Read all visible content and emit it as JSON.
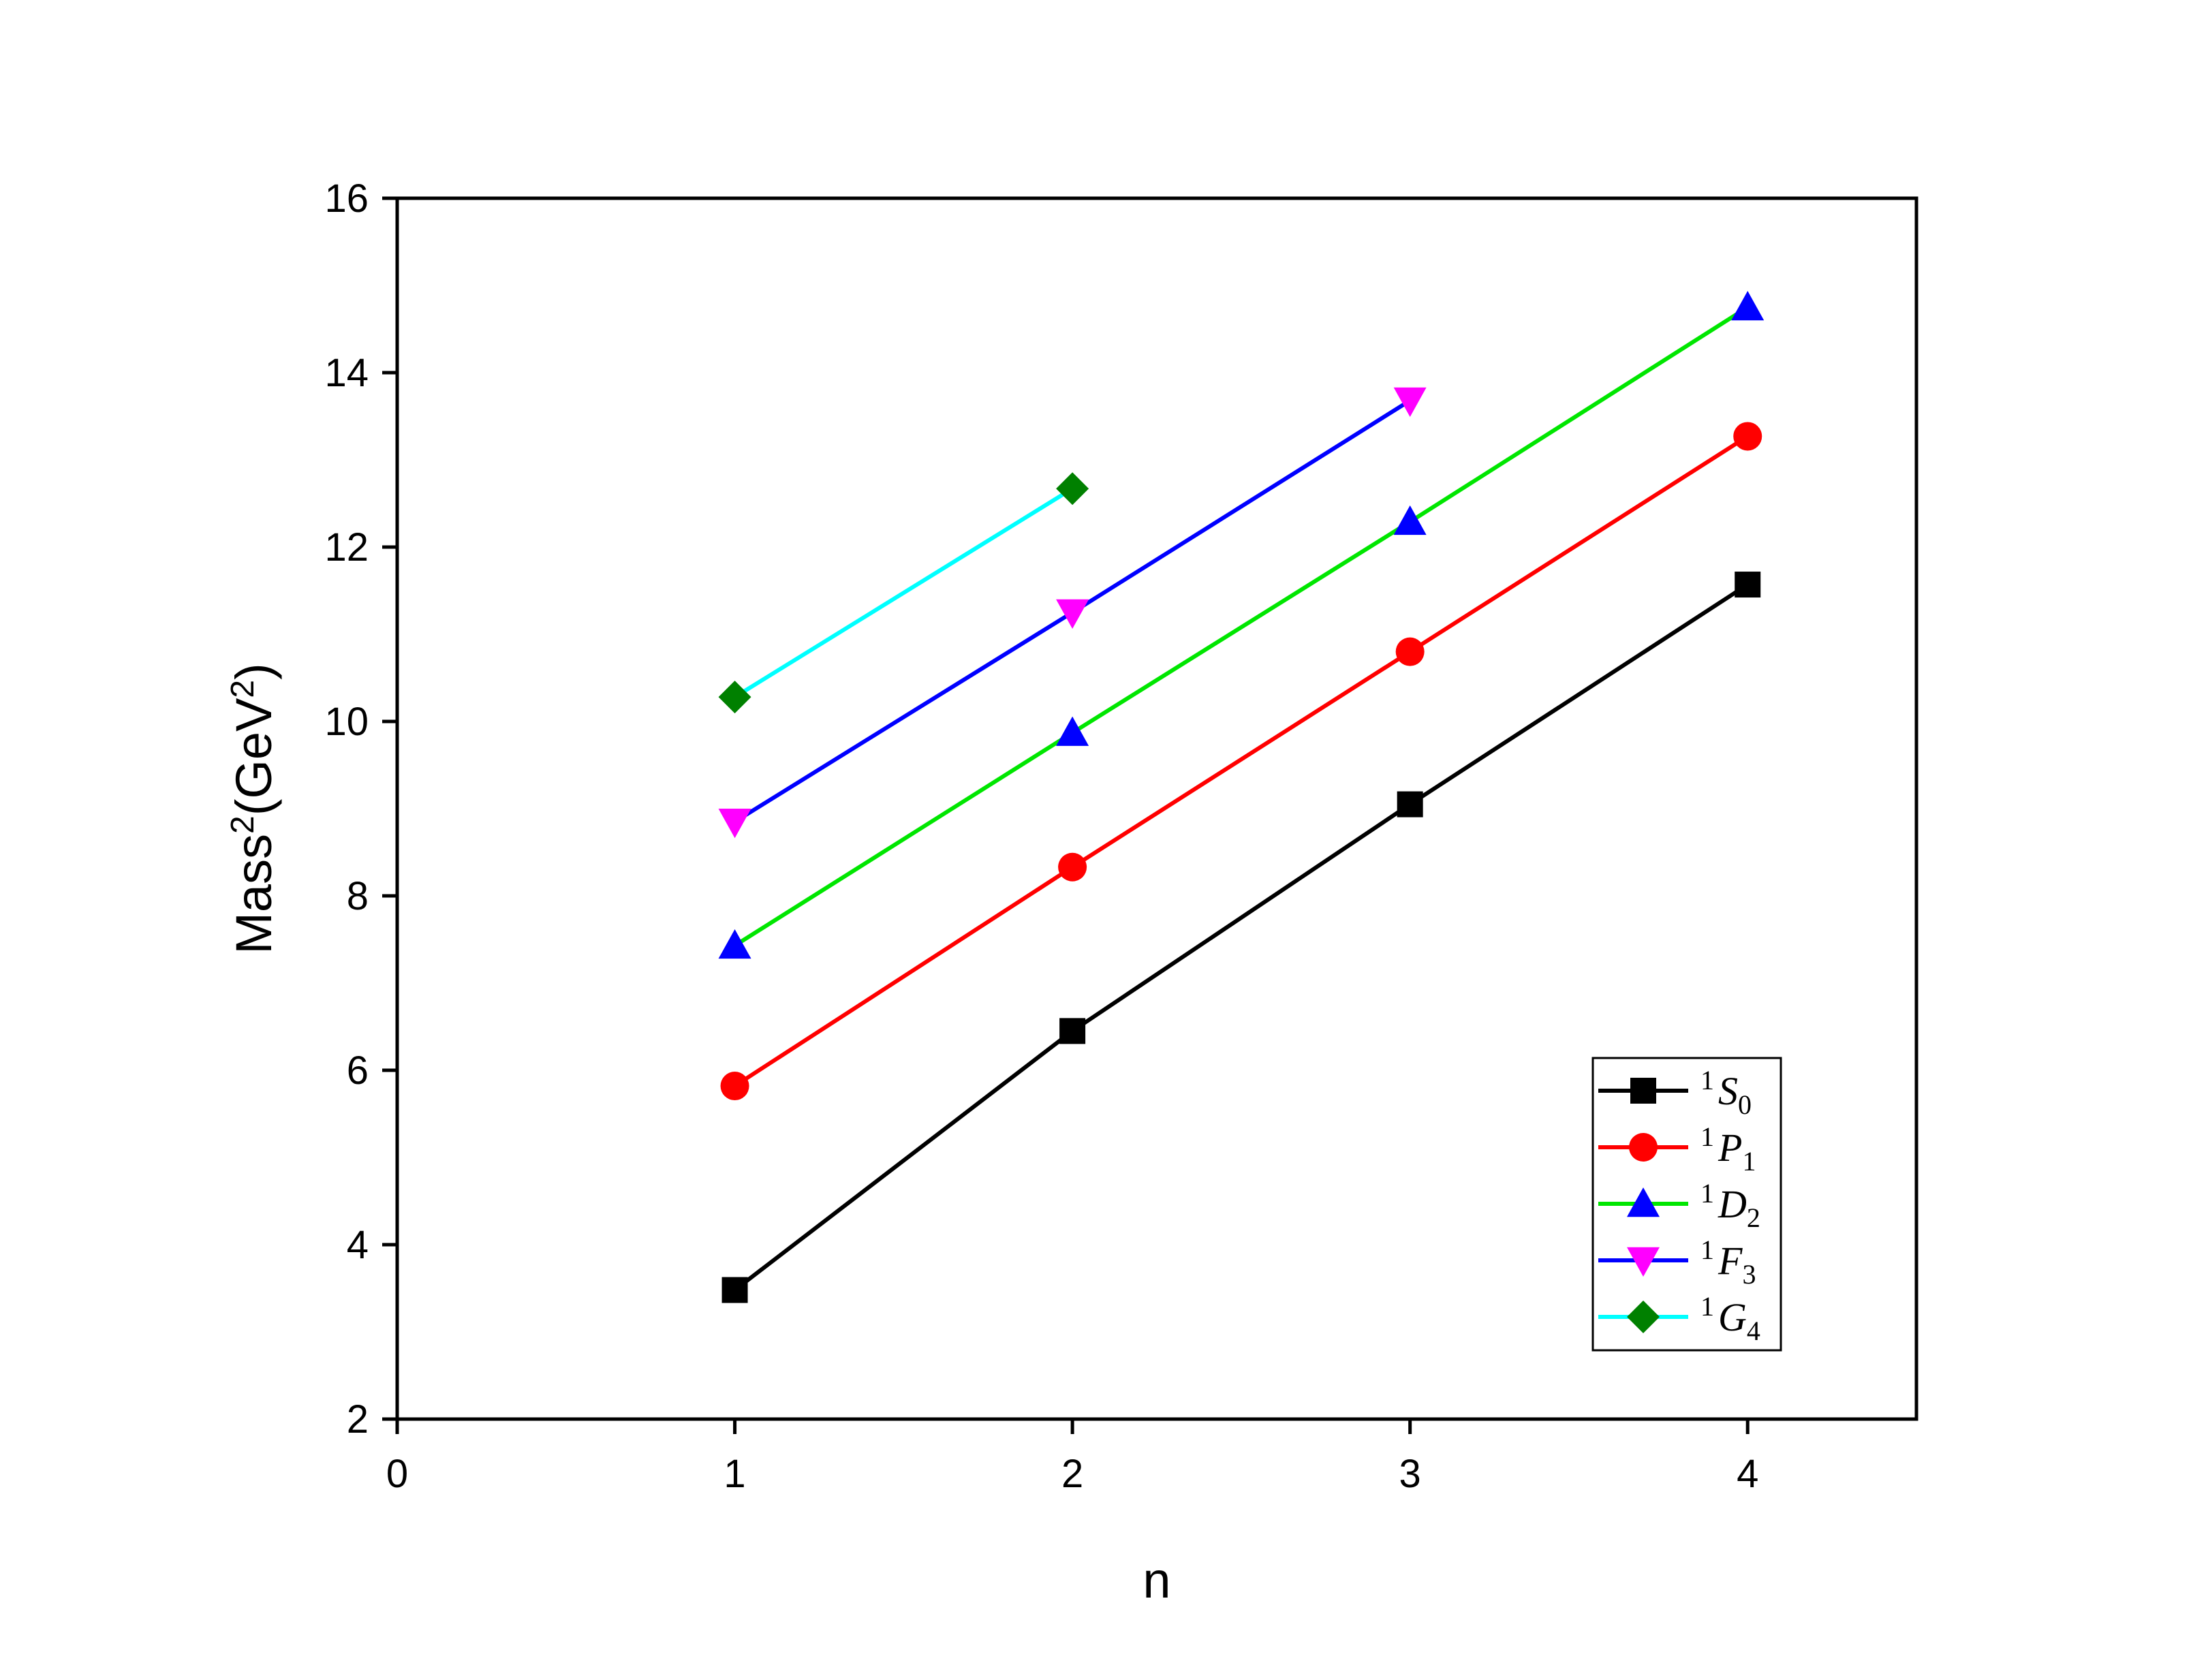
{
  "chart_data": {
    "type": "line",
    "xlabel": "n",
    "ylabel": {
      "base": "Mass",
      "sup": "2",
      "unit_open": "(GeV",
      "unit_sup": "2",
      "unit_close": ")"
    },
    "xlim": [
      0,
      4.5
    ],
    "ylim": [
      2,
      16
    ],
    "xticks": [
      0,
      1,
      2,
      3,
      4
    ],
    "yticks": [
      2,
      4,
      6,
      8,
      10,
      12,
      14,
      16
    ],
    "grid": false,
    "legend_position": "bottom-right",
    "series": [
      {
        "name": "1S0",
        "label": {
          "sup": "1",
          "letter": "S",
          "sub": "0"
        },
        "line_color": "#000000",
        "marker": "square",
        "marker_color": "#000000",
        "x": [
          1,
          2,
          3,
          4
        ],
        "y": [
          3.48,
          6.45,
          9.05,
          11.57
        ]
      },
      {
        "name": "1P1",
        "label": {
          "sup": "1",
          "letter": "P",
          "sub": "1"
        },
        "line_color": "#ff0000",
        "marker": "circle",
        "marker_color": "#ff0000",
        "x": [
          1,
          2,
          3,
          4
        ],
        "y": [
          5.82,
          8.33,
          10.8,
          13.27
        ]
      },
      {
        "name": "1D2",
        "label": {
          "sup": "1",
          "letter": "D",
          "sub": "2"
        },
        "line_color": "#00e600",
        "marker": "triangle-up",
        "marker_color": "#0000ff",
        "x": [
          1,
          2,
          3,
          4
        ],
        "y": [
          7.43,
          9.87,
          12.29,
          14.75
        ]
      },
      {
        "name": "1F3",
        "label": {
          "sup": "1",
          "letter": "F",
          "sub": "3"
        },
        "line_color": "#0000ff",
        "marker": "triangle-down",
        "marker_color": "#ff00ff",
        "x": [
          1,
          2,
          3
        ],
        "y": [
          8.85,
          11.25,
          13.68
        ]
      },
      {
        "name": "1G4",
        "label": {
          "sup": "1",
          "letter": "G",
          "sub": "4"
        },
        "line_color": "#00ffff",
        "marker": "diamond",
        "marker_color": "#008000",
        "x": [
          1,
          2
        ],
        "y": [
          10.28,
          12.67
        ]
      }
    ]
  }
}
